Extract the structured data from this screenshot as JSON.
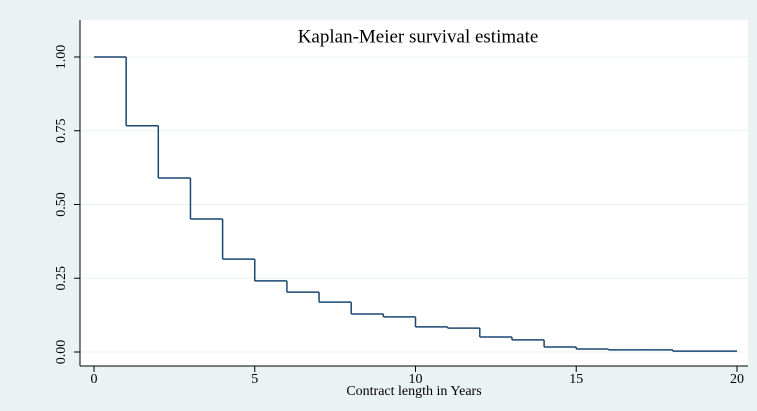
{
  "chart_data": {
    "type": "step",
    "title": "Kaplan-Meier survival estimate",
    "x_label": "Contract length in Years",
    "x": [
      0,
      1,
      2,
      3,
      4,
      5,
      6,
      7,
      8,
      9,
      10,
      11,
      12,
      13,
      14,
      15,
      16,
      17,
      18,
      19
    ],
    "values": [
      1.0,
      0.767,
      0.59,
      0.451,
      0.315,
      0.241,
      0.203,
      0.169,
      0.129,
      0.119,
      0.085,
      0.081,
      0.051,
      0.041,
      0.017,
      0.01,
      0.007,
      0.007,
      0.003,
      0.003
    ],
    "color": "#1a476f",
    "xlim": [
      0,
      20
    ],
    "xticks": [
      0,
      5,
      10,
      15,
      20
    ],
    "ylim": [
      0,
      1
    ],
    "yticks": [
      {
        "value": 0,
        "label": "0.00"
      },
      {
        "value": 0.25,
        "label": "0.25"
      },
      {
        "value": 0.5,
        "label": "0.50"
      },
      {
        "value": 0.75,
        "label": "0.75"
      },
      {
        "value": 1,
        "label": "1.00"
      }
    ],
    "grid": true
  }
}
